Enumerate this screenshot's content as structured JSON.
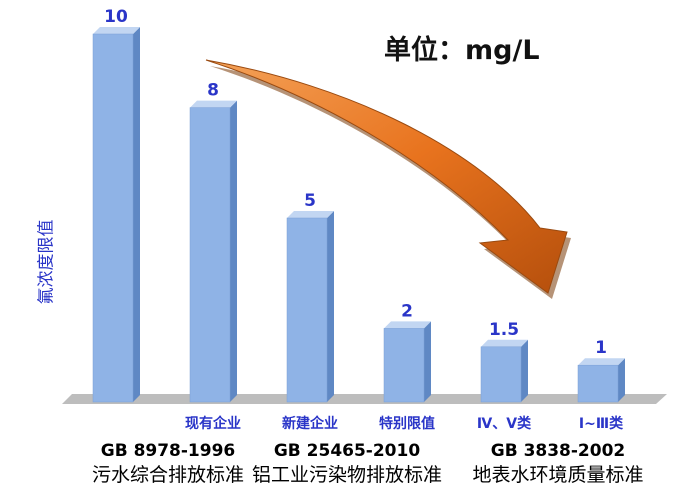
{
  "unit_label": "单位：mg/L",
  "standards": [
    {
      "code": "GB 8978-1996",
      "name": "污水综合排放标准"
    },
    {
      "code": "GB 25465-2010",
      "name": "铝工业污染物排放标准"
    },
    {
      "code": "GB 3838-2002",
      "name": "地表水环境质量标准"
    }
  ],
  "colors": {
    "bar_front": "#8fb3e6",
    "bar_side": "#5f88c4",
    "bar_top": "#c2d6f2",
    "floor": "#bdbdbd",
    "value_label": "#2a35c8",
    "category_label": "#2a35c8",
    "arrow": "#e8731e"
  },
  "chart_data": {
    "type": "bar",
    "title": "",
    "xlabel": "",
    "ylabel": "氟浓度限值",
    "ylim": [
      0,
      10
    ],
    "grid": false,
    "legend": "none",
    "categories": [
      "",
      "现有企业",
      "新建企业",
      "特别限值",
      "Ⅳ、Ⅴ类",
      "Ⅰ~Ⅲ类"
    ],
    "values": [
      10,
      8,
      5,
      2,
      1.5,
      1
    ],
    "data_labels": [
      "10",
      "8",
      "5",
      "2",
      "1.5",
      "1"
    ]
  }
}
